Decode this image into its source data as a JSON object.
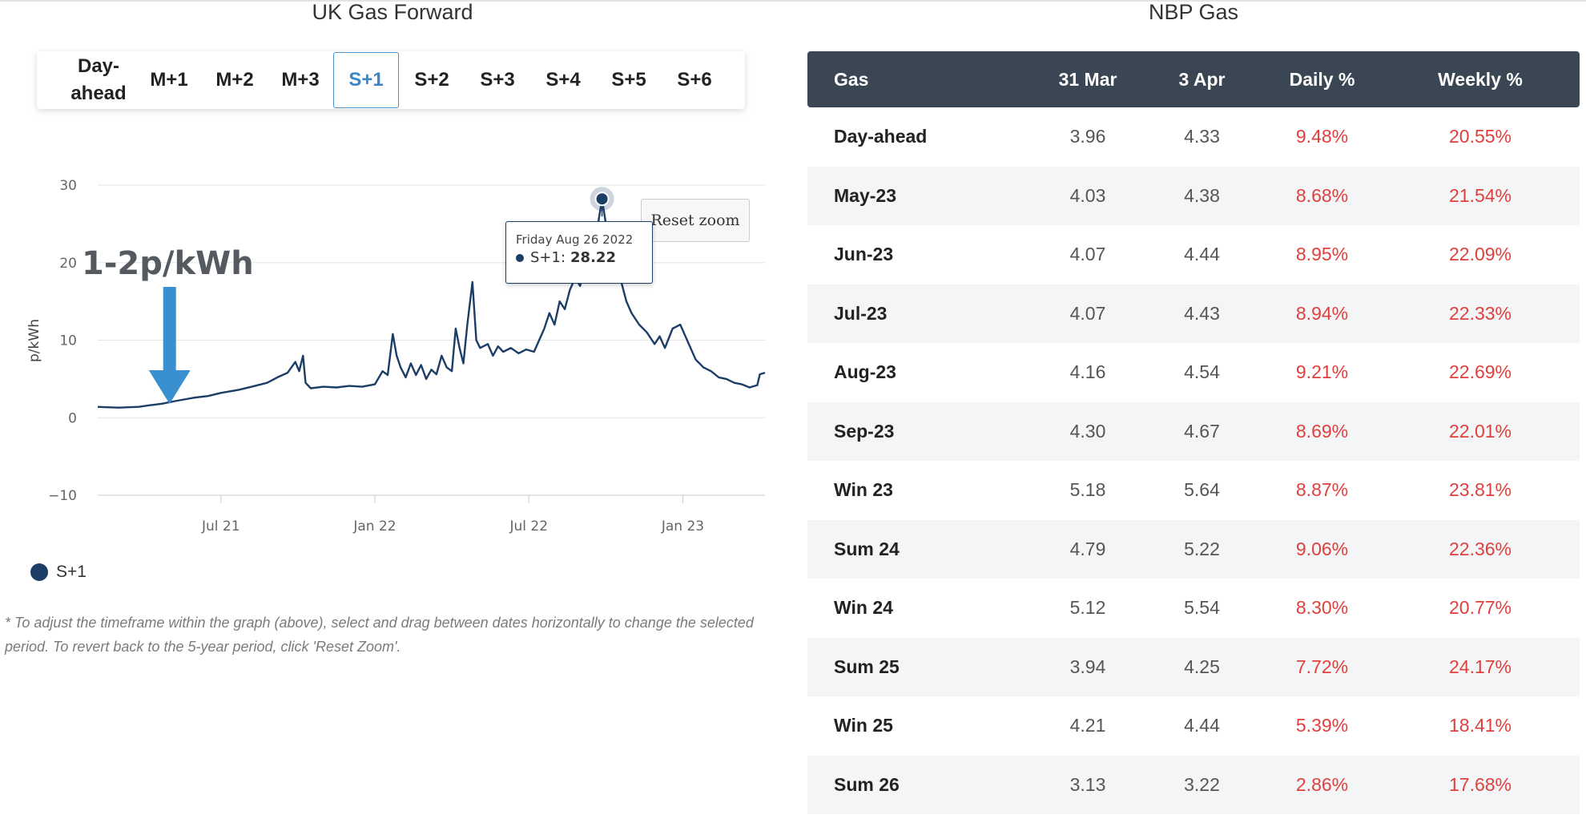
{
  "left": {
    "title": "UK Gas Forward",
    "tabs": [
      "Day-ahead",
      "M+1",
      "M+2",
      "M+3",
      "S+1",
      "S+2",
      "S+3",
      "S+4",
      "S+5",
      "S+6"
    ],
    "active_tab": "S+1",
    "annotation": "1-2p/kWh",
    "reset_label": "Reset zoom",
    "tooltip": {
      "date": "Friday Aug 26 2022",
      "series": "S+1:",
      "value": "28.22"
    },
    "legend_label": "S+1",
    "footnote": "* To adjust the timeframe within the graph (above), select and drag between dates horizontally to change the selected period. To revert back to the 5-year period, click 'Reset Zoom'."
  },
  "chart_data": {
    "type": "line",
    "title": "UK Gas Forward",
    "xlabel": "",
    "ylabel": "p/kWh",
    "ylim": [
      -10,
      30
    ],
    "yticks": [
      30,
      20,
      10,
      0,
      -10
    ],
    "xtick_labels": [
      "Jul 21",
      "Jan 22",
      "Jul 22",
      "Jan 23"
    ],
    "xtick_months": [
      6,
      12,
      18,
      24
    ],
    "x_range_months": [
      1.2,
      27.2
    ],
    "series": [
      {
        "name": "S+1",
        "color": "#1b3d66",
        "points": [
          [
            1.2,
            1.4
          ],
          [
            2.0,
            1.3
          ],
          [
            2.8,
            1.4
          ],
          [
            3.2,
            1.6
          ],
          [
            3.7,
            1.8
          ],
          [
            4.3,
            2.2
          ],
          [
            5.0,
            2.6
          ],
          [
            5.5,
            2.8
          ],
          [
            6.0,
            3.2
          ],
          [
            6.7,
            3.6
          ],
          [
            7.2,
            4.0
          ],
          [
            7.8,
            4.5
          ],
          [
            8.2,
            5.2
          ],
          [
            8.6,
            5.8
          ],
          [
            8.9,
            7.2
          ],
          [
            9.05,
            6.0
          ],
          [
            9.2,
            8.0
          ],
          [
            9.3,
            4.5
          ],
          [
            9.5,
            3.8
          ],
          [
            10.0,
            4.0
          ],
          [
            10.5,
            3.9
          ],
          [
            11.0,
            4.1
          ],
          [
            11.5,
            4.0
          ],
          [
            12.0,
            4.3
          ],
          [
            12.3,
            6.0
          ],
          [
            12.5,
            5.5
          ],
          [
            12.7,
            10.8
          ],
          [
            12.85,
            8.0
          ],
          [
            13.0,
            6.5
          ],
          [
            13.2,
            5.2
          ],
          [
            13.4,
            7.0
          ],
          [
            13.6,
            5.5
          ],
          [
            13.8,
            6.8
          ],
          [
            14.0,
            5.0
          ],
          [
            14.2,
            6.2
          ],
          [
            14.4,
            5.6
          ],
          [
            14.6,
            8.0
          ],
          [
            14.8,
            6.5
          ],
          [
            15.0,
            6.0
          ],
          [
            15.15,
            11.5
          ],
          [
            15.3,
            9.0
          ],
          [
            15.45,
            7.0
          ],
          [
            15.6,
            12.0
          ],
          [
            15.8,
            17.5
          ],
          [
            15.95,
            10.0
          ],
          [
            16.1,
            9.0
          ],
          [
            16.4,
            9.5
          ],
          [
            16.6,
            8.0
          ],
          [
            16.8,
            9.2
          ],
          [
            17.0,
            8.5
          ],
          [
            17.3,
            9.0
          ],
          [
            17.6,
            8.3
          ],
          [
            17.9,
            8.8
          ],
          [
            18.2,
            8.5
          ],
          [
            18.4,
            10.0
          ],
          [
            18.6,
            11.5
          ],
          [
            18.8,
            13.5
          ],
          [
            19.0,
            12.0
          ],
          [
            19.2,
            15.0
          ],
          [
            19.4,
            14.0
          ],
          [
            19.6,
            16.5
          ],
          [
            19.8,
            18.0
          ],
          [
            20.0,
            17.0
          ],
          [
            20.2,
            20.5
          ],
          [
            20.4,
            19.0
          ],
          [
            20.6,
            23.0
          ],
          [
            20.85,
            28.22
          ],
          [
            21.0,
            25.0
          ],
          [
            21.2,
            18.0
          ],
          [
            21.4,
            20.0
          ],
          [
            21.6,
            17.5
          ],
          [
            21.8,
            15.0
          ],
          [
            22.0,
            13.5
          ],
          [
            22.3,
            12.0
          ],
          [
            22.6,
            11.0
          ],
          [
            22.9,
            9.5
          ],
          [
            23.1,
            10.5
          ],
          [
            23.3,
            9.0
          ],
          [
            23.6,
            11.5
          ],
          [
            23.9,
            12.0
          ],
          [
            24.1,
            10.5
          ],
          [
            24.3,
            9.0
          ],
          [
            24.5,
            7.5
          ],
          [
            24.8,
            6.5
          ],
          [
            25.1,
            6.0
          ],
          [
            25.4,
            5.2
          ],
          [
            25.7,
            5.0
          ],
          [
            26.0,
            4.5
          ],
          [
            26.3,
            4.3
          ],
          [
            26.6,
            3.9
          ],
          [
            26.9,
            4.2
          ],
          [
            27.0,
            5.6
          ],
          [
            27.2,
            5.8
          ]
        ]
      }
    ],
    "highlight": {
      "x": 20.85,
      "y": 28.22,
      "label": "Friday Aug 26 2022"
    },
    "annotation_arrow": {
      "x": 4.0,
      "label": "1-2p/kWh"
    }
  },
  "table": {
    "title": "NBP Gas",
    "headers": [
      "Gas",
      "31 Mar",
      "3 Apr",
      "Daily %",
      "Weekly %"
    ],
    "rows": [
      [
        "Day-ahead",
        "3.96",
        "4.33",
        "9.48%",
        "20.55%"
      ],
      [
        "May-23",
        "4.03",
        "4.38",
        "8.68%",
        "21.54%"
      ],
      [
        "Jun-23",
        "4.07",
        "4.44",
        "8.95%",
        "22.09%"
      ],
      [
        "Jul-23",
        "4.07",
        "4.43",
        "8.94%",
        "22.33%"
      ],
      [
        "Aug-23",
        "4.16",
        "4.54",
        "9.21%",
        "22.69%"
      ],
      [
        "Sep-23",
        "4.30",
        "4.67",
        "8.69%",
        "22.01%"
      ],
      [
        "Win 23",
        "5.18",
        "5.64",
        "8.87%",
        "23.81%"
      ],
      [
        "Sum 24",
        "4.79",
        "5.22",
        "9.06%",
        "22.36%"
      ],
      [
        "Win 24",
        "5.12",
        "5.54",
        "8.30%",
        "20.77%"
      ],
      [
        "Sum 25",
        "3.94",
        "4.25",
        "7.72%",
        "24.17%"
      ],
      [
        "Win 25",
        "4.21",
        "4.44",
        "5.39%",
        "18.41%"
      ],
      [
        "Sum 26",
        "3.13",
        "3.22",
        "2.86%",
        "17.68%"
      ]
    ]
  }
}
